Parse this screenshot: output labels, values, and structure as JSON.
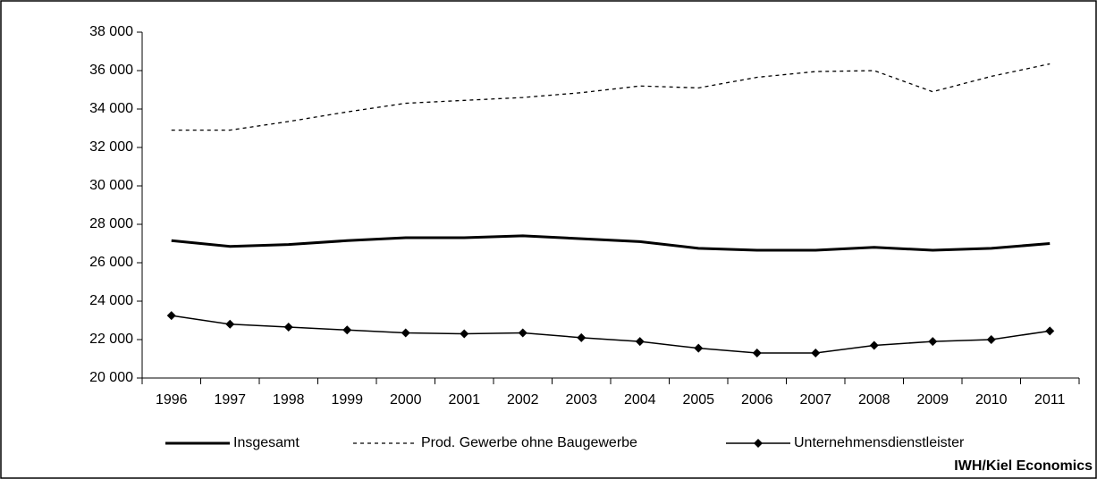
{
  "chart_data": {
    "type": "line",
    "categories": [
      "1996",
      "1997",
      "1998",
      "1999",
      "2000",
      "2001",
      "2002",
      "2003",
      "2004",
      "2005",
      "2006",
      "2007",
      "2008",
      "2009",
      "2010",
      "2011"
    ],
    "series": [
      {
        "name": "Insgesamt",
        "color": "#000000",
        "style": "solid",
        "values": [
          27150,
          26850,
          26950,
          27150,
          27300,
          27300,
          27400,
          27250,
          27100,
          26750,
          26650,
          26650,
          26800,
          26650,
          26750,
          27000
        ]
      },
      {
        "name": "Prod. Gewerbe ohne Baugewerbe",
        "color": "#000000",
        "style": "dotted",
        "values": [
          32900,
          32900,
          33350,
          33850,
          34300,
          34450,
          34600,
          34850,
          35200,
          35100,
          35650,
          35950,
          36000,
          34900,
          35700,
          36350
        ]
      },
      {
        "name": "Unternehmensdienstleister",
        "color": "#000000",
        "style": "marker",
        "values": [
          23250,
          22800,
          22650,
          22500,
          22350,
          22300,
          22350,
          22100,
          21900,
          21550,
          21300,
          21300,
          21700,
          21900,
          22000,
          22450
        ]
      }
    ],
    "ylim": [
      20000,
      38000
    ],
    "yticks": [
      {
        "value": 20000,
        "label": "20 000"
      },
      {
        "value": 22000,
        "label": "22 000"
      },
      {
        "value": 24000,
        "label": "24 000"
      },
      {
        "value": 26000,
        "label": "26 000"
      },
      {
        "value": 28000,
        "label": "28 000"
      },
      {
        "value": 30000,
        "label": "30 000"
      },
      {
        "value": 32000,
        "label": "32 000"
      },
      {
        "value": 34000,
        "label": "34 000"
      },
      {
        "value": 36000,
        "label": "36 000"
      },
      {
        "value": 38000,
        "label": "38 000"
      }
    ],
    "legend": "bottom",
    "source": "IWH/Kiel Economics"
  }
}
